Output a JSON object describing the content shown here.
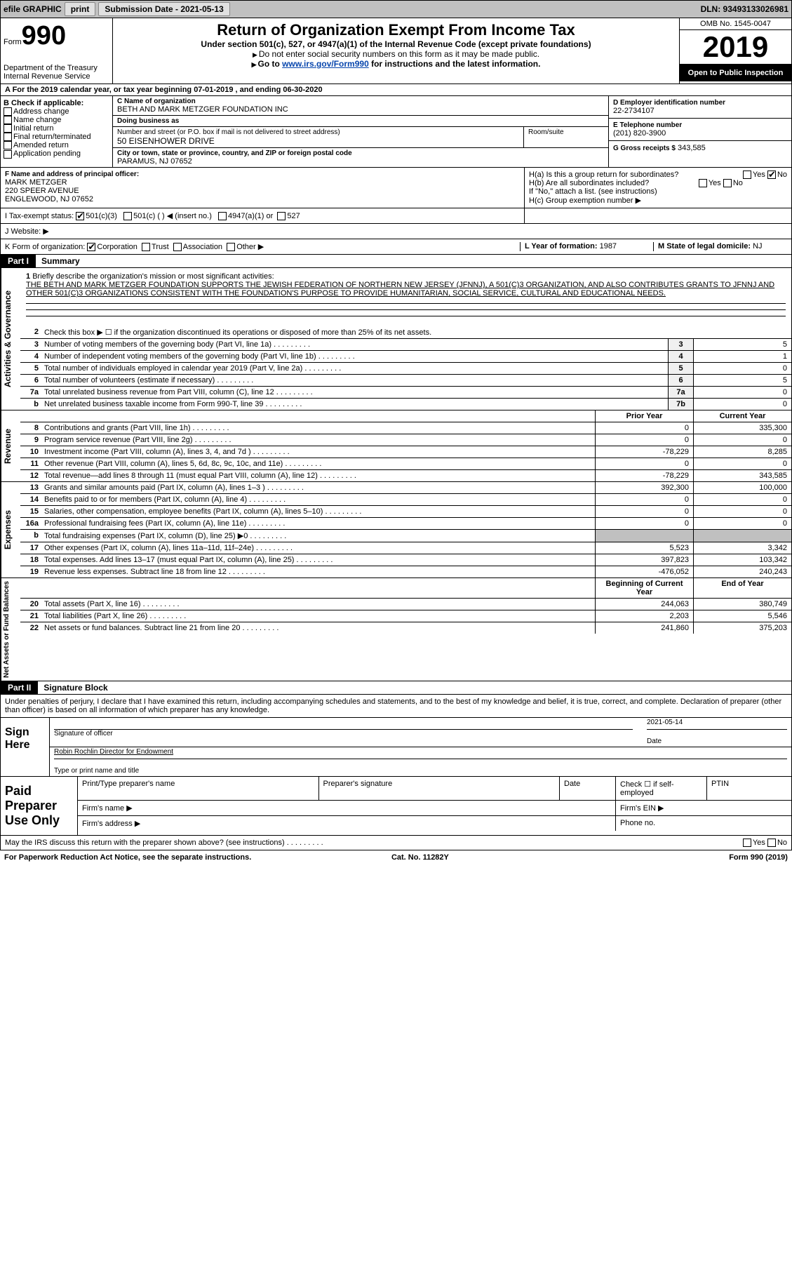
{
  "colors": {
    "topbar_bg": "#c0c0c0",
    "text": "#000000",
    "link": "#0645ad",
    "black": "#000000",
    "white": "#ffffff",
    "shade": "#c0c0c0",
    "boxbg": "#f0f0f0"
  },
  "topbar": {
    "efile": "efile GRAPHIC",
    "print": "print",
    "submission_label": "Submission Date - 2021-05-13",
    "dln": "DLN: 93493133026981"
  },
  "header": {
    "form_word": "Form",
    "form_num": "990",
    "dept": "Department of the Treasury\nInternal Revenue Service",
    "title": "Return of Organization Exempt From Income Tax",
    "sub": "Under section 501(c), 527, or 4947(a)(1) of the Internal Revenue Code (except private foundations)",
    "note": "Do not enter social security numbers on this form as it may be made public.",
    "goto_pre": "Go to ",
    "goto_link": "www.irs.gov/Form990",
    "goto_post": " for instructions and the latest information.",
    "omb": "OMB No. 1545-0047",
    "year": "2019",
    "open": "Open to Public Inspection"
  },
  "period": "A For the 2019 calendar year, or tax year beginning 07-01-2019    , and ending 06-30-2020",
  "sectionB": {
    "hdr": "B Check if applicable:",
    "items": [
      "Address change",
      "Name change",
      "Initial return",
      "Final return/terminated",
      "Amended return",
      "Application pending"
    ]
  },
  "sectionC": {
    "name_lbl": "C Name of organization",
    "name": "BETH AND MARK METZGER FOUNDATION INC",
    "dba_lbl": "Doing business as",
    "dba": "",
    "street_lbl": "Number and street (or P.O. box if mail is not delivered to street address)",
    "street": "50 EISENHOWER DRIVE",
    "suite_lbl": "Room/suite",
    "city_lbl": "City or town, state or province, country, and ZIP or foreign postal code",
    "city": "PARAMUS, NJ  07652"
  },
  "sectionD": {
    "lbl": "D Employer identification number",
    "val": "22-2734107"
  },
  "sectionE": {
    "lbl": "E Telephone number",
    "val": "(201) 820-3900"
  },
  "sectionG": {
    "lbl": "G Gross receipts $",
    "val": "343,585"
  },
  "sectionF": {
    "lbl": "F Name and address of principal officer:",
    "name": "MARK METZGER",
    "addr1": "220 SPEER AVENUE",
    "addr2": "ENGLEWOOD, NJ  07652"
  },
  "sectionH": {
    "a_lbl": "H(a)  Is this a group return for subordinates?",
    "a_yes": "Yes",
    "a_no": "No",
    "b_lbl": "H(b)  Are all subordinates included?",
    "b_yes": "Yes",
    "b_no": "No",
    "b_note": "If \"No,\" attach a list. (see instructions)",
    "c_lbl": "H(c)  Group exemption number ▶"
  },
  "sectionI": {
    "lbl": "I   Tax-exempt status:",
    "opts": [
      "501(c)(3)",
      "501(c) (  ) ◀ (insert no.)",
      "4947(a)(1) or",
      "527"
    ]
  },
  "sectionJ": {
    "lbl": "J   Website: ▶"
  },
  "sectionK": {
    "lbl": "K Form of organization:",
    "opts": [
      "Corporation",
      "Trust",
      "Association",
      "Other ▶"
    ]
  },
  "sectionL": {
    "lbl": "L Year of formation:",
    "val": "1987"
  },
  "sectionM": {
    "lbl": "M State of legal domicile:",
    "val": "NJ"
  },
  "part1": {
    "tab": "Part I",
    "title": "Summary"
  },
  "mission": {
    "num": "1",
    "lbl": "Briefly describe the organization's mission or most significant activities:",
    "text": "THE BETH AND MARK METZGER FOUNDATION SUPPORTS THE JEWISH FEDERATION OF NORTHERN NEW JERSEY (JFNNJ), A 501(C)3 ORGANIZATION, AND ALSO CONTRIBUTES GRANTS TO JFNNJ AND OTHER 501(C)3 ORGANIZATIONS CONSISTENT WITH THE FOUNDATION'S PURPOSE TO PROVIDE HUMANITARIAN, SOCIAL SERVICE, CULTURAL AND EDUCATIONAL NEEDS."
  },
  "governance": {
    "line2": "Check this box ▶ ☐  if the organization discontinued its operations or disposed of more than 25% of its net assets.",
    "rows": [
      {
        "n": "3",
        "d": "Number of voting members of the governing body (Part VI, line 1a)",
        "box": "3",
        "v": "5"
      },
      {
        "n": "4",
        "d": "Number of independent voting members of the governing body (Part VI, line 1b)",
        "box": "4",
        "v": "1"
      },
      {
        "n": "5",
        "d": "Total number of individuals employed in calendar year 2019 (Part V, line 2a)",
        "box": "5",
        "v": "0"
      },
      {
        "n": "6",
        "d": "Total number of volunteers (estimate if necessary)",
        "box": "6",
        "v": "5"
      },
      {
        "n": "7a",
        "d": "Total unrelated business revenue from Part VIII, column (C), line 12",
        "box": "7a",
        "v": "0"
      },
      {
        "n": "b",
        "d": "Net unrelated business taxable income from Form 990-T, line 39",
        "box": "7b",
        "v": "0"
      }
    ]
  },
  "cols": {
    "prior": "Prior Year",
    "current": "Current Year",
    "boc": "Beginning of Current Year",
    "eoy": "End of Year"
  },
  "revenue": [
    {
      "n": "8",
      "d": "Contributions and grants (Part VIII, line 1h)",
      "p": "0",
      "c": "335,300"
    },
    {
      "n": "9",
      "d": "Program service revenue (Part VIII, line 2g)",
      "p": "0",
      "c": "0"
    },
    {
      "n": "10",
      "d": "Investment income (Part VIII, column (A), lines 3, 4, and 7d )",
      "p": "-78,229",
      "c": "8,285"
    },
    {
      "n": "11",
      "d": "Other revenue (Part VIII, column (A), lines 5, 6d, 8c, 9c, 10c, and 11e)",
      "p": "0",
      "c": "0"
    },
    {
      "n": "12",
      "d": "Total revenue—add lines 8 through 11 (must equal Part VIII, column (A), line 12)",
      "p": "-78,229",
      "c": "343,585"
    }
  ],
  "expenses": [
    {
      "n": "13",
      "d": "Grants and similar amounts paid (Part IX, column (A), lines 1–3 )",
      "p": "392,300",
      "c": "100,000"
    },
    {
      "n": "14",
      "d": "Benefits paid to or for members (Part IX, column (A), line 4)",
      "p": "0",
      "c": "0"
    },
    {
      "n": "15",
      "d": "Salaries, other compensation, employee benefits (Part IX, column (A), lines 5–10)",
      "p": "0",
      "c": "0"
    },
    {
      "n": "16a",
      "d": "Professional fundraising fees (Part IX, column (A), line 11e)",
      "p": "0",
      "c": "0"
    },
    {
      "n": "b",
      "d": "Total fundraising expenses (Part IX, column (D), line 25) ▶0",
      "p": "",
      "c": "",
      "shade": true
    },
    {
      "n": "17",
      "d": "Other expenses (Part IX, column (A), lines 11a–11d, 11f–24e)",
      "p": "5,523",
      "c": "3,342"
    },
    {
      "n": "18",
      "d": "Total expenses. Add lines 13–17 (must equal Part IX, column (A), line 25)",
      "p": "397,823",
      "c": "103,342"
    },
    {
      "n": "19",
      "d": "Revenue less expenses. Subtract line 18 from line 12",
      "p": "-476,052",
      "c": "240,243"
    }
  ],
  "netassets": [
    {
      "n": "20",
      "d": "Total assets (Part X, line 16)",
      "p": "244,063",
      "c": "380,749"
    },
    {
      "n": "21",
      "d": "Total liabilities (Part X, line 26)",
      "p": "2,203",
      "c": "5,546"
    },
    {
      "n": "22",
      "d": "Net assets or fund balances. Subtract line 21 from line 20",
      "p": "241,860",
      "c": "375,203"
    }
  ],
  "part2": {
    "tab": "Part II",
    "title": "Signature Block"
  },
  "sig_text": "Under penalties of perjury, I declare that I have examined this return, including accompanying schedules and statements, and to the best of my knowledge and belief, it is true, correct, and complete. Declaration of preparer (other than officer) is based on all information of which preparer has any knowledge.",
  "sign": {
    "label": "Sign Here",
    "sig_lbl": "Signature of officer",
    "date": "2021-05-14",
    "date_lbl": "Date",
    "name": "Robin Rochlin  Director for Endowment",
    "name_lbl": "Type or print name and title"
  },
  "prep": {
    "label": "Paid Preparer Use Only",
    "r1": [
      "Print/Type preparer's name",
      "Preparer's signature",
      "Date",
      "Check ☐ if self-employed",
      "PTIN"
    ],
    "r2_lbl": "Firm's name  ▶",
    "r2_ein": "Firm's EIN ▶",
    "r3_lbl": "Firm's address ▶",
    "r3_ph": "Phone no."
  },
  "may": {
    "text": "May the IRS discuss this return with the preparer shown above? (see instructions)",
    "yes": "Yes",
    "no": "No"
  },
  "footer": {
    "left": "For Paperwork Reduction Act Notice, see the separate instructions.",
    "mid": "Cat. No. 11282Y",
    "right": "Form 990 (2019)"
  }
}
